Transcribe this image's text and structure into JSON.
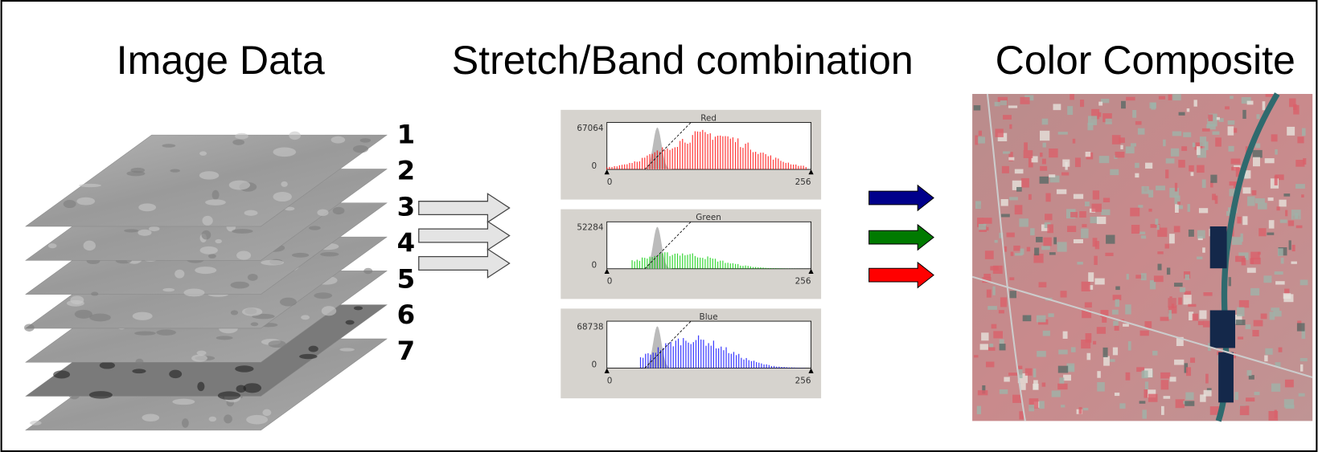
{
  "titles": [
    "Image Data",
    "Stretch/Band combination",
    "Color Composite"
  ],
  "bands": [
    1,
    2,
    3,
    4,
    5,
    6,
    7
  ],
  "histograms": [
    {
      "label": "Red",
      "max": 67064,
      "zero": 0,
      "start": 0,
      "end": 256
    },
    {
      "label": "Green",
      "max": 52284,
      "zero": 0,
      "start": 0,
      "end": 256
    },
    {
      "label": "Blue",
      "max": 68738,
      "zero": 0,
      "start": 0,
      "end": 256
    }
  ]
}
